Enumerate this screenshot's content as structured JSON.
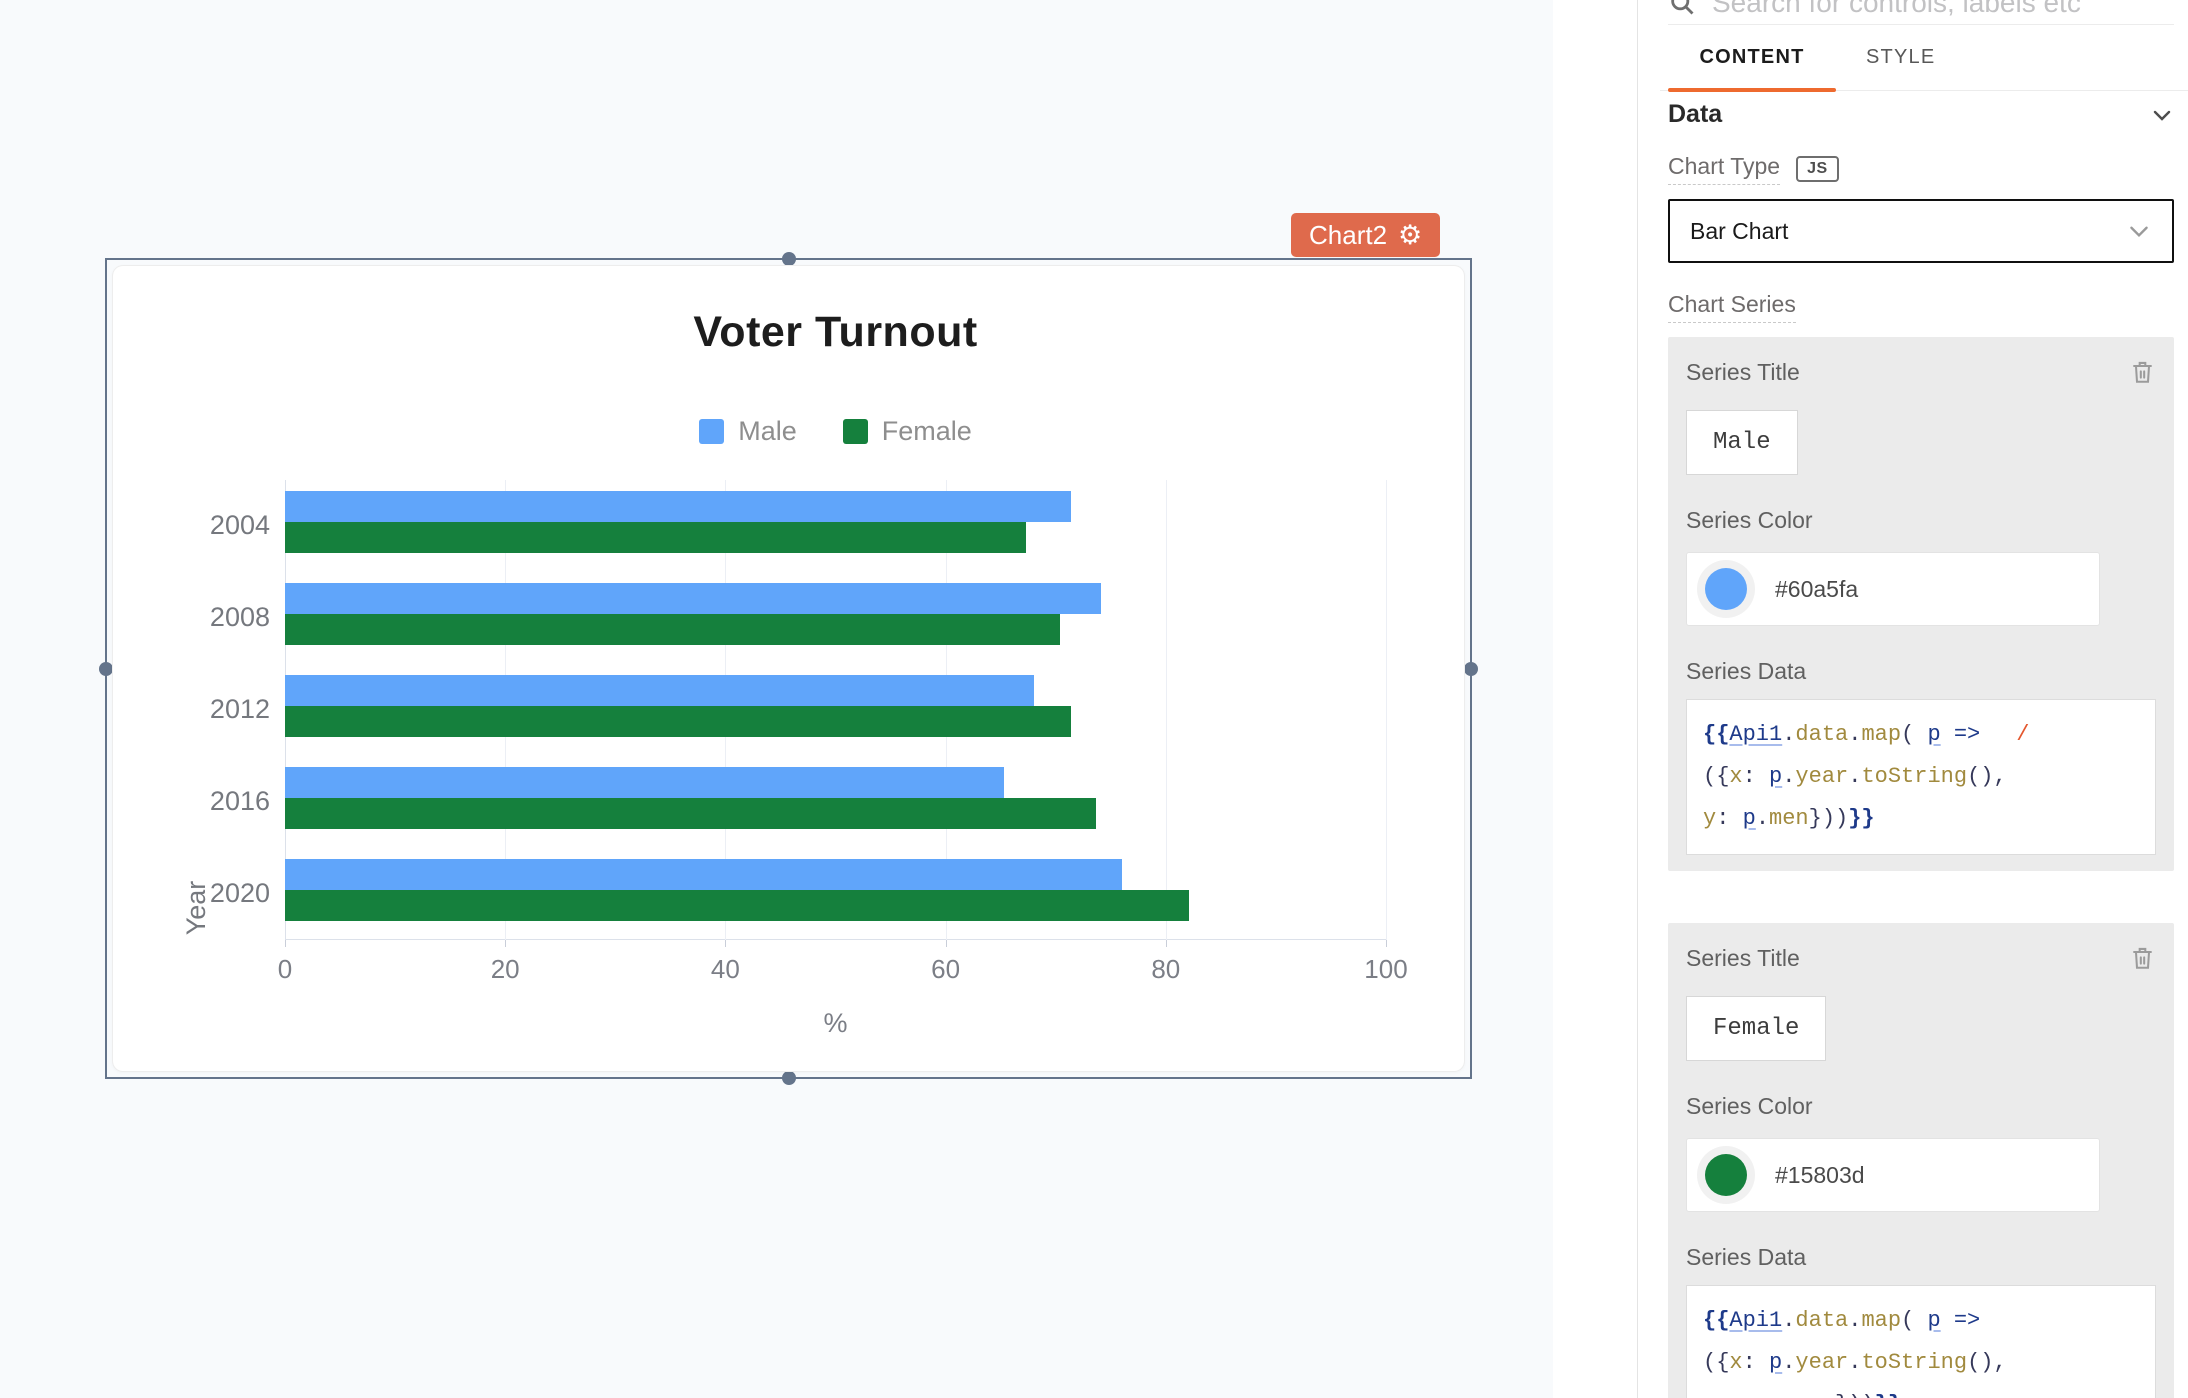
{
  "canvas": {
    "widget_label": "Chart2",
    "gear_icon": "⚙"
  },
  "chart_data": {
    "type": "bar",
    "orientation": "horizontal",
    "title": "Voter Turnout",
    "categories": [
      "2004",
      "2008",
      "2012",
      "2016",
      "2020"
    ],
    "series": [
      {
        "name": "Male",
        "color": "#60a5fa",
        "values": [
          71.4,
          74.1,
          68.0,
          65.3,
          76.0
        ]
      },
      {
        "name": "Female",
        "color": "#15803d",
        "values": [
          67.3,
          70.4,
          71.4,
          73.7,
          82.1
        ]
      }
    ],
    "xlabel": "%",
    "ylabel": "Year",
    "xlim": [
      0,
      100
    ],
    "x_ticks": [
      0,
      20,
      40,
      60,
      80,
      100
    ],
    "grid": true,
    "legend_position": "top-center"
  },
  "pane": {
    "search_placeholder": "Search for controls, labels etc",
    "tabs": {
      "content": "CONTENT",
      "style": "STYLE"
    },
    "section_title": "Data",
    "chart_type_label": "Chart Type",
    "js_badge": "JS",
    "chart_type_value": "Bar Chart",
    "chart_series_label": "Chart Series",
    "series": [
      {
        "title_label": "Series Title",
        "title_value": "Male",
        "color_label": "Series Color",
        "color_value": "#60a5fa",
        "data_label": "Series Data",
        "code": [
          [
            [
              "brace",
              "{{"
            ],
            [
              "var",
              "Api1"
            ],
            [
              "punct",
              "."
            ],
            [
              "prop",
              "data"
            ],
            [
              "punct",
              "."
            ],
            [
              "prop",
              "map"
            ],
            [
              "punct",
              "("
            ],
            [
              "plain",
              " "
            ],
            [
              "var",
              "p"
            ],
            [
              "plain",
              " "
            ],
            [
              "arrow",
              "=>"
            ],
            [
              "slash",
              "/"
            ]
          ],
          [
            [
              "punct",
              "({"
            ],
            [
              "prop",
              "x"
            ],
            [
              "punct",
              ":"
            ],
            [
              "plain",
              " "
            ],
            [
              "var",
              "p"
            ],
            [
              "punct",
              "."
            ],
            [
              "prop",
              "year"
            ],
            [
              "punct",
              "."
            ],
            [
              "prop",
              "toString"
            ],
            [
              "punct",
              "(),"
            ]
          ],
          [
            [
              "prop",
              "y"
            ],
            [
              "punct",
              ":"
            ],
            [
              "plain",
              " "
            ],
            [
              "var",
              "p"
            ],
            [
              "punct",
              "."
            ],
            [
              "prop",
              "men"
            ],
            [
              "punct",
              "}))"
            ],
            [
              "brace",
              "}}"
            ]
          ]
        ]
      },
      {
        "title_label": "Series Title",
        "title_value": "Female",
        "color_label": "Series Color",
        "color_value": "#15803d",
        "data_label": "Series Data",
        "code": [
          [
            [
              "brace",
              "{{"
            ],
            [
              "var",
              "Api1"
            ],
            [
              "punct",
              "."
            ],
            [
              "prop",
              "data"
            ],
            [
              "punct",
              "."
            ],
            [
              "prop",
              "map"
            ],
            [
              "punct",
              "("
            ],
            [
              "plain",
              " "
            ],
            [
              "var",
              "p"
            ],
            [
              "punct",
              " "
            ],
            [
              "arrow",
              "=>"
            ]
          ],
          [
            [
              "punct",
              "({"
            ],
            [
              "prop",
              "x"
            ],
            [
              "punct",
              ":"
            ],
            [
              "plain",
              " "
            ],
            [
              "var",
              "p"
            ],
            [
              "punct",
              "."
            ],
            [
              "prop",
              "year"
            ],
            [
              "punct",
              "."
            ],
            [
              "prop",
              "toString"
            ],
            [
              "punct",
              "(),"
            ]
          ],
          [
            [
              "prop",
              "y"
            ],
            [
              "punct",
              ":"
            ],
            [
              "plain",
              " "
            ],
            [
              "var",
              "p"
            ],
            [
              "punct",
              "."
            ],
            [
              "prop",
              "women"
            ],
            [
              "punct",
              "}))"
            ],
            [
              "brace",
              "}}"
            ]
          ]
        ]
      }
    ]
  }
}
